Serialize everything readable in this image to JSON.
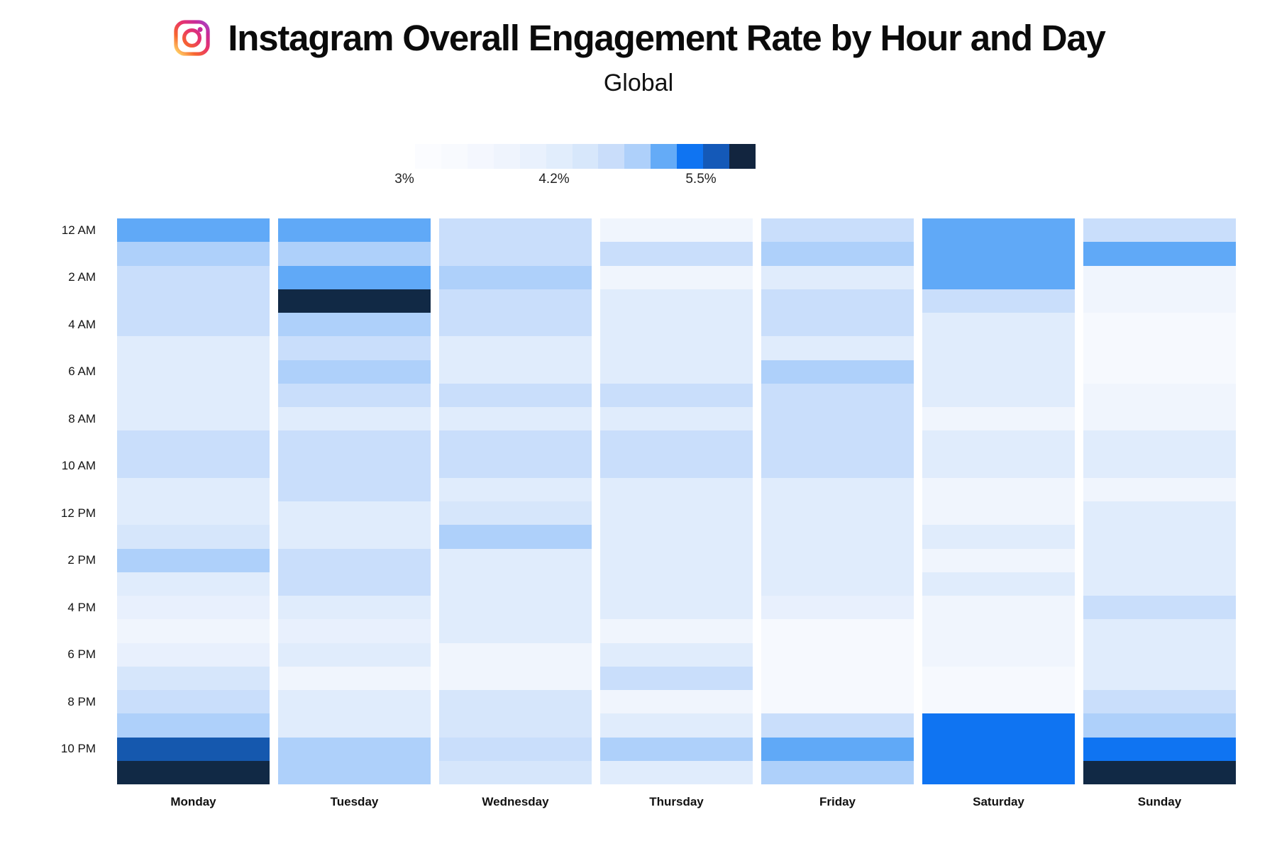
{
  "header": {
    "title": "Instagram Overall Engagement Rate by Hour and Day",
    "subtitle": "Global",
    "icon": "instagram-icon"
  },
  "legend": {
    "min_label": "3%",
    "mid_label": "4.2%",
    "max_label": "5.5%",
    "band_colors": [
      "#fbfcff",
      "#f8fafe",
      "#f4f7fe",
      "#eff4fd",
      "#e9f1fd",
      "#e1edfc",
      "#d7e7fb",
      "#c9ddfa",
      "#aed0fa",
      "#64abf7",
      "#0f74f2",
      "#1459b8",
      "#12253f"
    ]
  },
  "chart_data": {
    "type": "heatmap",
    "title": "Instagram Overall Engagement Rate by Hour and Day",
    "subtitle": "Global",
    "unit": "%",
    "value_range": [
      3.0,
      5.5
    ],
    "legend_tick_values": [
      "3%",
      "4.2%",
      "5.5%"
    ],
    "x_categories": [
      "Monday",
      "Tuesday",
      "Wednesday",
      "Thursday",
      "Friday",
      "Saturday",
      "Sunday"
    ],
    "hours_per_day": 24,
    "hour_tick_labels": [
      "12 AM",
      "2 AM",
      "4 AM",
      "6 AM",
      "8 AM",
      "10 AM",
      "12 PM",
      "2 PM",
      "4 PM",
      "6 PM",
      "8 PM",
      "10 PM"
    ],
    "palette": [
      {
        "color": "#f6f9fe",
        "value": 3.0
      },
      {
        "color": "#f0f5fd",
        "value": 3.2
      },
      {
        "color": "#e8f0fd",
        "value": 3.3
      },
      {
        "color": "#e0ecfc",
        "value": 3.4
      },
      {
        "color": "#d6e6fb",
        "value": 3.6
      },
      {
        "color": "#c9defb",
        "value": 3.8
      },
      {
        "color": "#aed0fa",
        "value": 4.2
      },
      {
        "color": "#60a9f7",
        "value": 4.6
      },
      {
        "color": "#0f74f2",
        "value": 5.0
      },
      {
        "color": "#1558ae",
        "value": 5.2
      },
      {
        "color": "#112945",
        "value": 5.5
      }
    ],
    "series": [
      {
        "name": "Monday",
        "levels": [
          7,
          6,
          5,
          5,
          5,
          3,
          3,
          3,
          3,
          5,
          5,
          3,
          3,
          4,
          6,
          3,
          2,
          1,
          2,
          4,
          5,
          6,
          9,
          10
        ],
        "values": [
          4.6,
          4.2,
          3.8,
          3.8,
          3.8,
          3.4,
          3.4,
          3.4,
          3.4,
          3.8,
          3.8,
          3.4,
          3.4,
          3.6,
          4.2,
          3.4,
          3.3,
          3.2,
          3.3,
          3.6,
          3.8,
          4.2,
          5.2,
          5.5
        ]
      },
      {
        "name": "Tuesday",
        "levels": [
          7,
          6,
          7,
          10,
          6,
          5,
          6,
          5,
          3,
          5,
          5,
          5,
          3,
          3,
          5,
          5,
          3,
          2,
          3,
          1,
          3,
          3,
          6,
          6
        ],
        "values": [
          4.6,
          4.2,
          4.6,
          5.5,
          4.2,
          3.8,
          4.2,
          3.8,
          3.4,
          3.8,
          3.8,
          3.8,
          3.4,
          3.4,
          3.8,
          3.8,
          3.4,
          3.3,
          3.4,
          3.2,
          3.4,
          3.4,
          4.2,
          4.2
        ]
      },
      {
        "name": "Wednesday",
        "levels": [
          5,
          5,
          6,
          5,
          5,
          3,
          3,
          5,
          3,
          5,
          5,
          3,
          4,
          6,
          3,
          3,
          3,
          3,
          1,
          1,
          4,
          4,
          5,
          4
        ],
        "values": [
          3.8,
          3.8,
          4.2,
          3.8,
          3.8,
          3.4,
          3.4,
          3.8,
          3.4,
          3.8,
          3.8,
          3.4,
          3.6,
          4.2,
          3.4,
          3.4,
          3.4,
          3.4,
          3.2,
          3.2,
          3.6,
          3.6,
          3.8,
          3.6
        ]
      },
      {
        "name": "Thursday",
        "levels": [
          1,
          5,
          1,
          3,
          3,
          3,
          3,
          5,
          3,
          5,
          5,
          3,
          3,
          3,
          3,
          3,
          3,
          1,
          3,
          5,
          1,
          3,
          6,
          3
        ],
        "values": [
          3.2,
          3.8,
          3.2,
          3.4,
          3.4,
          3.4,
          3.4,
          3.8,
          3.4,
          3.8,
          3.8,
          3.4,
          3.4,
          3.4,
          3.4,
          3.4,
          3.4,
          3.2,
          3.4,
          3.8,
          3.2,
          3.4,
          4.2,
          3.4
        ]
      },
      {
        "name": "Friday",
        "levels": [
          5,
          6,
          3,
          5,
          5,
          3,
          6,
          5,
          5,
          5,
          5,
          3,
          3,
          3,
          3,
          3,
          2,
          0,
          0,
          0,
          0,
          5,
          7,
          6
        ],
        "values": [
          3.8,
          4.2,
          3.4,
          3.8,
          3.8,
          3.4,
          4.2,
          3.8,
          3.8,
          3.8,
          3.8,
          3.4,
          3.4,
          3.4,
          3.4,
          3.4,
          3.3,
          3.0,
          3.0,
          3.0,
          3.0,
          3.8,
          4.6,
          4.2
        ]
      },
      {
        "name": "Saturday",
        "levels": [
          7,
          7,
          7,
          5,
          3,
          3,
          3,
          3,
          1,
          3,
          3,
          1,
          1,
          3,
          1,
          3,
          1,
          1,
          1,
          0,
          0,
          8,
          8,
          8
        ],
        "values": [
          4.6,
          4.6,
          4.6,
          3.8,
          3.4,
          3.4,
          3.4,
          3.4,
          3.2,
          3.4,
          3.4,
          3.2,
          3.2,
          3.4,
          3.2,
          3.4,
          3.2,
          3.2,
          3.2,
          3.0,
          3.0,
          5.0,
          5.0,
          5.0
        ]
      },
      {
        "name": "Sunday",
        "levels": [
          5,
          7,
          1,
          1,
          0,
          0,
          0,
          1,
          1,
          3,
          3,
          1,
          3,
          3,
          3,
          3,
          5,
          3,
          3,
          3,
          5,
          6,
          8,
          10
        ],
        "values": [
          3.8,
          4.6,
          3.2,
          3.2,
          3.0,
          3.0,
          3.0,
          3.2,
          3.2,
          3.4,
          3.4,
          3.2,
          3.4,
          3.4,
          3.4,
          3.4,
          3.8,
          3.4,
          3.4,
          3.4,
          3.8,
          4.2,
          5.0,
          5.5
        ]
      }
    ]
  },
  "colors": {
    "background": "#ffffff",
    "accent_bright_blue": "#0f74f2",
    "medium_blue": "#60a9f7",
    "dark_navy": "#112945",
    "dark_blue": "#1558ae"
  }
}
